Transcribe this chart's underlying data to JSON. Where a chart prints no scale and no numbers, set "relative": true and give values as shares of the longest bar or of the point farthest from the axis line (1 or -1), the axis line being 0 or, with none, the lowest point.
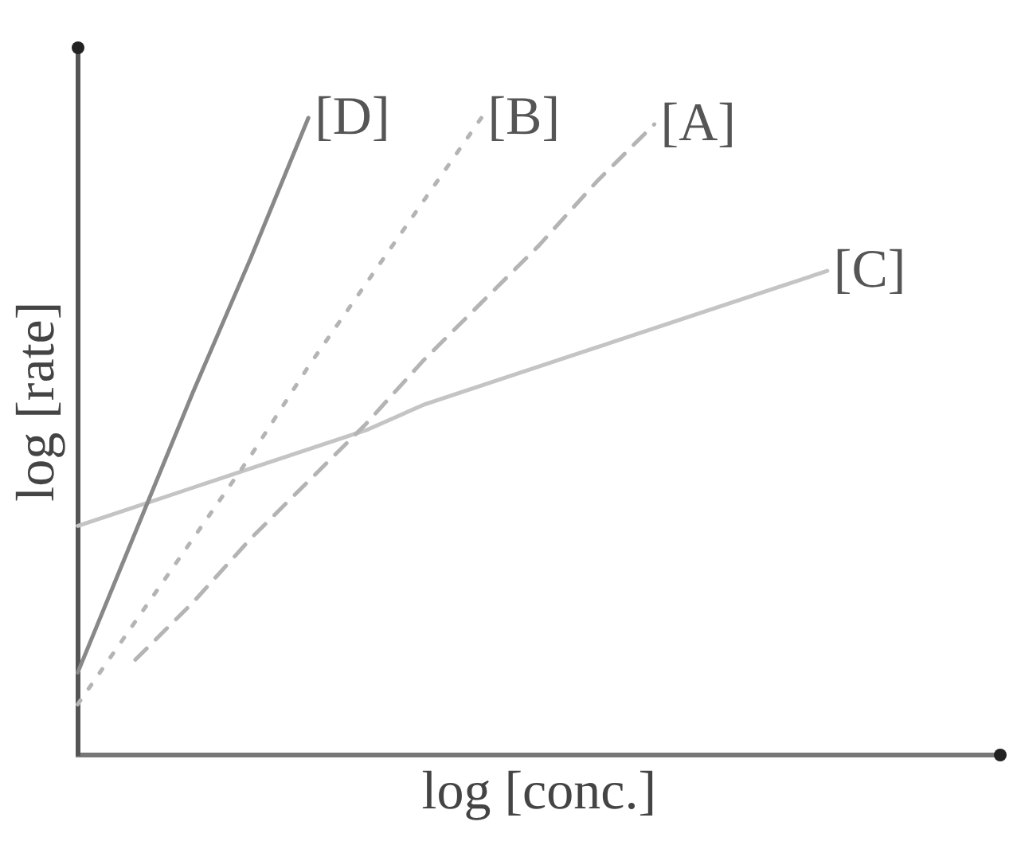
{
  "chart_data": {
    "type": "line",
    "relative": true,
    "xlabel": "log [conc.]",
    "ylabel": "log [rate]",
    "grid": false,
    "legend": false,
    "marker": "none",
    "tick_labels": false,
    "categories": [
      null,
      null,
      null,
      null,
      null,
      null,
      null,
      null,
      null,
      null,
      null,
      null,
      null,
      null,
      null,
      null,
      null
    ],
    "series": [
      {
        "name": "[D]",
        "color": "#888888",
        "line_style": "solid",
        "values": [
          0.13,
          0.35,
          0.57,
          0.78,
          1,
          null,
          null,
          null,
          null,
          null,
          null,
          null,
          null,
          null,
          null,
          null,
          null
        ]
      },
      {
        "name": "[B]",
        "color": "#b4b4b4",
        "line_style": "dotted",
        "values": [
          0.08,
          0.21,
          0.34,
          0.47,
          0.61,
          0.74,
          0.87,
          1,
          null,
          null,
          null,
          null,
          null,
          null,
          null,
          null,
          null
        ]
      },
      {
        "name": "[A]",
        "color": "#b4b4b4",
        "line_style": "dashed",
        "values": [
          null,
          0.15,
          0.24,
          0.34,
          0.43,
          0.52,
          0.62,
          0.71,
          0.8,
          0.9,
          0.99,
          null,
          null,
          null,
          null,
          null,
          null
        ]
      },
      {
        "name": "[C]",
        "color": "#c4c4c4",
        "line_style": "solid",
        "values": [
          0.36,
          0.39,
          0.42,
          0.45,
          0.48,
          0.51,
          0.55,
          0.58,
          0.61,
          0.64,
          0.67,
          0.7,
          0.73,
          0.76,
          null,
          null,
          null
        ]
      }
    ]
  }
}
